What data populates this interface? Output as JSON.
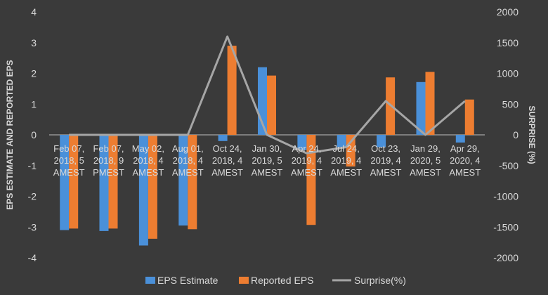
{
  "chart_data": {
    "type": "bar+line",
    "categories": [
      [
        "Feb 07,",
        "2018, 5",
        "AMEST"
      ],
      [
        "Feb 07,",
        "2018, 9",
        "PMEST"
      ],
      [
        "May 02,",
        "2018, 4",
        "AMEST"
      ],
      [
        "Aug 01,",
        "2018, 4",
        "AMEST"
      ],
      [
        "Oct 24,",
        "2018, 4",
        "AMEST"
      ],
      [
        "Jan 30,",
        "2019, 5",
        "AMEST"
      ],
      [
        "Apr 24,",
        "2019, 4",
        "AMEST"
      ],
      [
        "Jul 24,",
        "2019, 4",
        "AMEST"
      ],
      [
        "Oct 23,",
        "2019, 4",
        "AMEST"
      ],
      [
        "Jan 29,",
        "2020, 5",
        "AMEST"
      ],
      [
        "Apr 29,",
        "2020, 4",
        "AMEST"
      ]
    ],
    "series": [
      {
        "name": "EPS Estimate",
        "axis": "left",
        "color": "#4a90d9",
        "values": [
          -3.1,
          -3.13,
          -3.6,
          -2.95,
          -0.2,
          2.2,
          -0.5,
          -0.4,
          -0.4,
          1.72,
          -0.25
        ]
      },
      {
        "name": "Reported EPS",
        "axis": "left",
        "color": "#ed7d31",
        "values": [
          -3.05,
          -3.05,
          -3.38,
          -3.07,
          2.9,
          1.93,
          -2.93,
          -1.03,
          1.87,
          2.05,
          1.15
        ]
      },
      {
        "name": "Surprise(%)",
        "axis": "right",
        "type": "line",
        "color": "#a6a6a6",
        "values": [
          0,
          0,
          0,
          0,
          1600,
          0,
          -300,
          -200,
          550,
          0,
          550
        ]
      }
    ],
    "ylabel": "EPS ESTIMATE AND REPORTED EPS",
    "y2label": "SURPRISE (%)",
    "ylim": [
      -4,
      4
    ],
    "y2lim": [
      -2000,
      2000
    ],
    "yticks": [
      "4",
      "3",
      "2",
      "1",
      "0",
      "-1",
      "-2",
      "-3",
      "-4"
    ],
    "y2ticks": [
      "2000",
      "1500",
      "1000",
      "500",
      "0",
      "-500",
      "-1000",
      "-1500",
      "-2000"
    ],
    "legend_position": "bottom"
  }
}
